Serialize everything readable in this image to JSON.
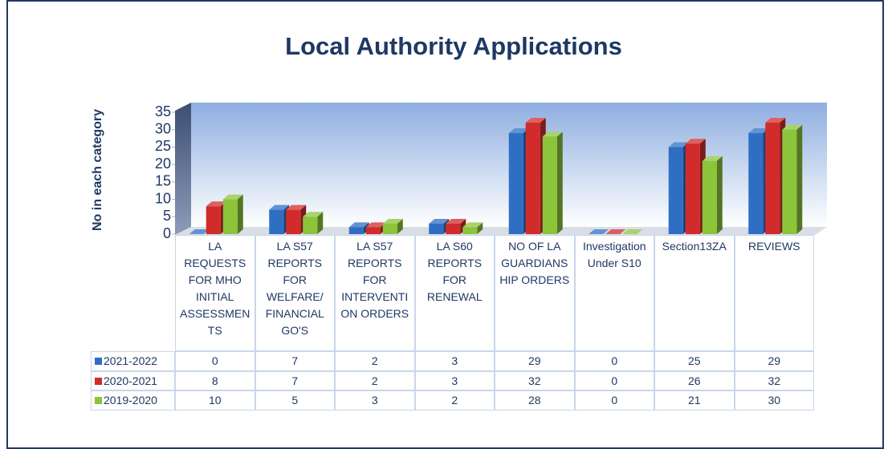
{
  "chart_data": {
    "type": "bar3d",
    "title": "Local Authority Applications",
    "y_label": "No in each category",
    "categories": [
      "LA REQUESTS FOR MHO INITIAL ASSESSMENTS",
      "LA S57 REPORTS FOR WELFARE/ FINANCIAL GO'S",
      "LA S57 REPORTS FOR INTERVENTION ORDERS",
      "LA S60 REPORTS FOR RENEWAL",
      "NO OF LA GUARDIANSHIP ORDERS",
      "Investigation Under S10",
      "Section13ZA",
      "REVIEWS"
    ],
    "series": [
      {
        "name": "2021-2022",
        "color": "#2e6fc4",
        "values": [
          0,
          7,
          2,
          3,
          29,
          0,
          25,
          29
        ]
      },
      {
        "name": "2020-2021",
        "color": "#d12b2b",
        "values": [
          8,
          7,
          2,
          3,
          32,
          0,
          26,
          32
        ]
      },
      {
        "name": "2019-2020",
        "color": "#8cc43a",
        "values": [
          10,
          5,
          3,
          2,
          28,
          0,
          21,
          30
        ]
      }
    ],
    "ylim": [
      0,
      35
    ],
    "yticks": [
      0,
      5,
      10,
      15,
      20,
      25,
      30,
      35
    ],
    "data_table": true
  }
}
